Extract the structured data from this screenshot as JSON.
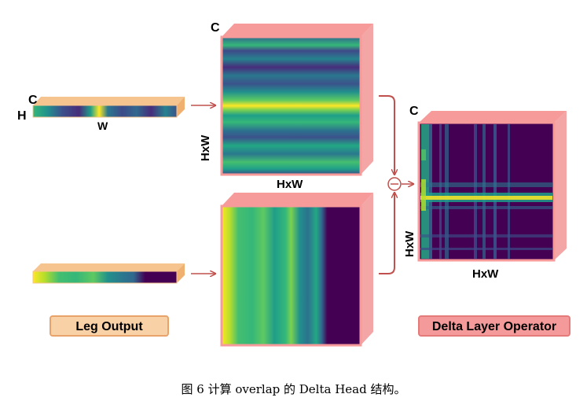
{
  "diagram": {
    "input_bar": {
      "channel_label": "C",
      "height_label": "H",
      "width_label": "W"
    },
    "spatial_map": {
      "channel_label": "C",
      "height_label": "HxW",
      "width_label": "HxW"
    },
    "operator_map": {
      "channel_label": "C",
      "height_label": "HxW",
      "width_label": "HxW"
    },
    "operation_symbol": "⊖",
    "labels": {
      "leg_output": "Leg Output",
      "delta_layer_operator": "Delta Layer Operator"
    }
  },
  "caption": "图 6 计算 overlap 的 Delta Head 结构。",
  "colors": {
    "box_side": "#f4a6a6",
    "box_top": "#f79a9a",
    "leg_label_fill": "#f9d1a6",
    "leg_label_stroke": "#e8a36a",
    "delta_label_fill": "#f59a9a",
    "delta_label_stroke": "#e57a7a",
    "bar_box": "#f6c48f",
    "arrow": "#c0504d",
    "dark_purple": "#440154",
    "yellow": "#fde725"
  }
}
